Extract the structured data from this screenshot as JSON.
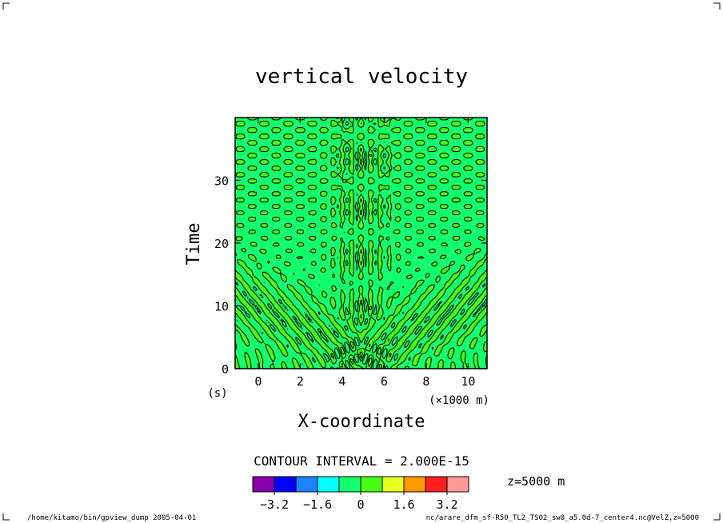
{
  "chart_data": {
    "type": "heatmap",
    "title": "vertical velocity",
    "xlabel": "X-coordinate",
    "ylabel": "Time",
    "x_unit": "(×1000 m)",
    "y_unit": "(s)",
    "xlim": [
      -1.1,
      10.9
    ],
    "ylim": [
      0,
      40
    ],
    "x_ticks": [
      0,
      2,
      4,
      6,
      8,
      10
    ],
    "y_ticks": [
      0,
      10,
      20,
      30
    ],
    "contour_interval_label": "CONTOUR INTERVAL = 2.000E-15",
    "z_label": "z=5000 m",
    "colorbar": {
      "colors": [
        "#8800aa",
        "#0000ff",
        "#1e82ff",
        "#00ffff",
        "#14ff6e",
        "#46ff14",
        "#e6ff1e",
        "#ff9900",
        "#ff1e1e",
        "#ff9999"
      ],
      "labels": [
        "−3.2",
        "−1.6",
        "0",
        "1.6",
        "3.2"
      ],
      "label_values": [
        -3.2,
        -1.6,
        0,
        1.6,
        3.2
      ]
    },
    "field_colors": {
      "low": "#14ff6e",
      "high": "#46ff14",
      "contour": "#000000"
    }
  },
  "footer": {
    "left": "/home/kitamo/bin/gpview_dump  2005-04-01",
    "right": "nc/arare_dfm_sf-R50_TL2_TS02_sw8_a5.0d-7_center4.nc@VelZ,z=5000"
  }
}
